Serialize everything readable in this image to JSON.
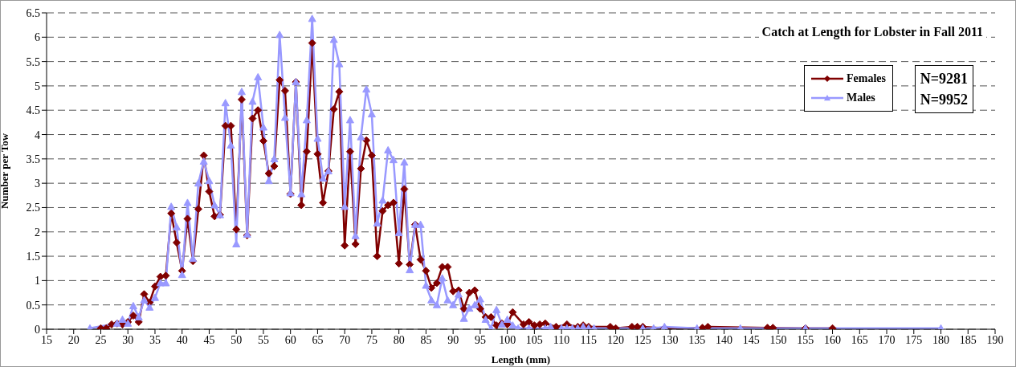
{
  "chart_data": {
    "type": "line",
    "title": "Catch at Length for Lobster in Fall 2011",
    "xlabel": "Length (mm)",
    "ylabel": "Number per Tow",
    "xlim": [
      15,
      190
    ],
    "xticks": [
      15,
      20,
      25,
      30,
      35,
      40,
      45,
      50,
      55,
      60,
      65,
      70,
      75,
      80,
      85,
      90,
      95,
      100,
      105,
      110,
      115,
      120,
      125,
      130,
      135,
      140,
      145,
      150,
      155,
      160,
      165,
      170,
      175,
      180,
      185,
      190
    ],
    "ylim": [
      0,
      6.5
    ],
    "yticks": [
      0,
      0.5,
      1,
      1.5,
      2,
      2.5,
      3,
      3.5,
      4,
      4.5,
      5,
      5.5,
      6,
      6.5
    ],
    "grid": "y",
    "legend": "top right",
    "line_style": "solid",
    "annotations": [
      "N=9281",
      "N=9952"
    ],
    "series": [
      {
        "name": "Females",
        "color": "#800000",
        "marker": "diamond",
        "x": [
          25,
          26,
          27,
          28,
          29,
          30,
          31,
          32,
          33,
          34,
          35,
          36,
          37,
          38,
          39,
          40,
          41,
          42,
          43,
          44,
          45,
          46,
          47,
          48,
          49,
          50,
          51,
          52,
          53,
          54,
          55,
          56,
          57,
          58,
          59,
          60,
          61,
          62,
          63,
          64,
          65,
          66,
          67,
          68,
          69,
          70,
          71,
          72,
          73,
          74,
          75,
          76,
          77,
          78,
          79,
          80,
          81,
          82,
          83,
          84,
          85,
          86,
          87,
          88,
          89,
          90,
          91,
          92,
          93,
          94,
          95,
          96,
          97,
          98,
          99,
          100,
          101,
          103,
          104,
          105,
          106,
          107,
          109,
          111,
          113,
          114,
          115,
          119,
          120,
          123,
          124,
          125,
          129,
          136,
          137,
          148,
          149,
          155,
          160
        ],
        "values": [
          0.02,
          0.02,
          0.1,
          0.12,
          0.1,
          0.15,
          0.28,
          0.15,
          0.72,
          0.55,
          0.88,
          1.08,
          1.1,
          2.38,
          1.78,
          1.2,
          2.27,
          1.4,
          2.47,
          3.57,
          2.83,
          2.32,
          2.35,
          4.18,
          4.18,
          2.05,
          4.72,
          1.93,
          4.33,
          4.5,
          3.87,
          3.2,
          3.35,
          5.12,
          4.9,
          2.78,
          5.08,
          2.55,
          3.65,
          5.88,
          3.6,
          2.6,
          3.25,
          4.52,
          4.88,
          1.72,
          3.65,
          1.75,
          3.3,
          3.88,
          3.57,
          1.5,
          2.43,
          2.55,
          2.6,
          1.35,
          2.88,
          1.33,
          2.15,
          1.43,
          1.2,
          0.85,
          0.95,
          1.28,
          1.28,
          0.78,
          0.8,
          0.42,
          0.75,
          0.8,
          0.42,
          0.25,
          0.25,
          0.08,
          0.12,
          0.1,
          0.35,
          0.1,
          0.15,
          0.08,
          0.1,
          0.12,
          0.05,
          0.1,
          0.05,
          0.08,
          0.05,
          0.05,
          0.02,
          0.05,
          0.05,
          0.05,
          0.02,
          0.03,
          0.05,
          0.03,
          0.03,
          0.02,
          0.02
        ]
      },
      {
        "name": "Males",
        "color": "#9999ff",
        "marker": "triangle",
        "x": [
          23,
          28,
          29,
          30,
          31,
          32,
          33,
          34,
          35,
          36,
          37,
          38,
          39,
          40,
          41,
          42,
          43,
          44,
          45,
          46,
          47,
          48,
          49,
          50,
          51,
          52,
          53,
          54,
          55,
          56,
          57,
          58,
          59,
          60,
          61,
          62,
          63,
          64,
          65,
          66,
          67,
          68,
          69,
          70,
          71,
          72,
          73,
          74,
          75,
          76,
          77,
          78,
          79,
          80,
          81,
          82,
          83,
          84,
          85,
          86,
          87,
          88,
          89,
          90,
          91,
          92,
          93,
          94,
          95,
          96,
          97,
          98,
          99,
          100,
          101,
          102,
          104,
          107,
          108,
          110,
          111,
          112,
          113,
          114,
          115,
          116,
          125,
          127,
          129,
          135,
          143,
          155,
          180
        ],
        "values": [
          0.02,
          0.12,
          0.2,
          0.12,
          0.48,
          0.25,
          0.6,
          0.45,
          0.65,
          0.95,
          0.95,
          2.52,
          2.1,
          1.12,
          2.6,
          1.45,
          3.0,
          3.45,
          3.05,
          2.55,
          2.35,
          4.65,
          3.78,
          1.75,
          4.88,
          1.95,
          4.68,
          5.18,
          4.15,
          3.05,
          3.5,
          6.05,
          4.35,
          2.8,
          5.08,
          2.78,
          4.3,
          6.38,
          3.92,
          3.1,
          3.25,
          5.95,
          5.45,
          2.52,
          4.3,
          1.92,
          3.95,
          4.93,
          4.42,
          2.18,
          2.65,
          3.68,
          3.48,
          1.98,
          3.43,
          1.22,
          2.15,
          2.15,
          0.9,
          0.6,
          0.5,
          1.05,
          0.6,
          0.5,
          0.72,
          0.22,
          0.43,
          0.5,
          0.62,
          0.2,
          0.02,
          0.4,
          0.1,
          0.2,
          0.08,
          0.02,
          0.02,
          0.02,
          0.05,
          0.02,
          0.02,
          0.02,
          0.02,
          0.05,
          0.02,
          0.02,
          0.02,
          0.02,
          0.05,
          0.02,
          0.02,
          0.02,
          0.02
        ]
      }
    ]
  }
}
